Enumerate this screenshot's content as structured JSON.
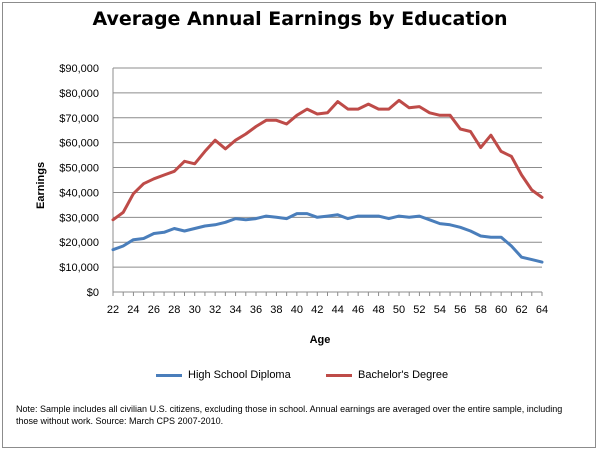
{
  "chart_data": {
    "type": "line",
    "title": "Average Annual Earnings by Education",
    "xlabel": "Age",
    "ylabel": "Earnings",
    "ylim": [
      0,
      90000
    ],
    "xlim": [
      22,
      64
    ],
    "grid": true,
    "legend_position": "bottom",
    "x": [
      22,
      23,
      24,
      25,
      26,
      27,
      28,
      29,
      30,
      31,
      32,
      33,
      34,
      35,
      36,
      37,
      38,
      39,
      40,
      41,
      42,
      43,
      44,
      45,
      46,
      47,
      48,
      49,
      50,
      51,
      52,
      53,
      54,
      55,
      56,
      57,
      58,
      59,
      60,
      61,
      62,
      63,
      64
    ],
    "x_tick_labels": [
      "22",
      "24",
      "26",
      "28",
      "30",
      "32",
      "34",
      "36",
      "38",
      "40",
      "42",
      "44",
      "46",
      "48",
      "50",
      "52",
      "54",
      "56",
      "58",
      "60",
      "62",
      "64"
    ],
    "y_tick_labels": [
      "$0",
      "$10,000",
      "$20,000",
      "$30,000",
      "$40,000",
      "$50,000",
      "$60,000",
      "$70,000",
      "$80,000",
      "$90,000"
    ],
    "series": [
      {
        "name": "High School Diploma",
        "color": "#4a7ebb",
        "values": [
          17000,
          18500,
          21000,
          21500,
          23500,
          24000,
          25500,
          24500,
          25500,
          26500,
          27000,
          28000,
          29500,
          29000,
          29500,
          30500,
          30000,
          29500,
          31500,
          31500,
          30000,
          30500,
          31000,
          29500,
          30500,
          30500,
          30500,
          29500,
          30500,
          30000,
          30500,
          29000,
          27500,
          27000,
          26000,
          24500,
          22500,
          22000,
          22000,
          18500,
          14000,
          13000,
          12000
        ]
      },
      {
        "name": "Bachelor's Degree",
        "color": "#be4b48",
        "values": [
          29000,
          32000,
          39500,
          43500,
          45500,
          47000,
          48500,
          52500,
          51500,
          56500,
          61000,
          57500,
          61000,
          63500,
          66500,
          69000,
          69000,
          67500,
          71000,
          73500,
          71500,
          72000,
          76500,
          73500,
          73500,
          75500,
          73500,
          73500,
          77000,
          74000,
          74500,
          72000,
          71000,
          71000,
          65500,
          64500,
          58000,
          63000,
          56500,
          54500,
          47000,
          41000,
          38000
        ]
      }
    ]
  },
  "note": "Note: Sample includes all civilian U.S. citizens, excluding those in school. Annual earnings are averaged over the entire sample, including those without work. Source: March CPS 2007-2010.",
  "style": {
    "grid_color": "#8c8c8c",
    "axis_color": "#8c8c8c"
  }
}
